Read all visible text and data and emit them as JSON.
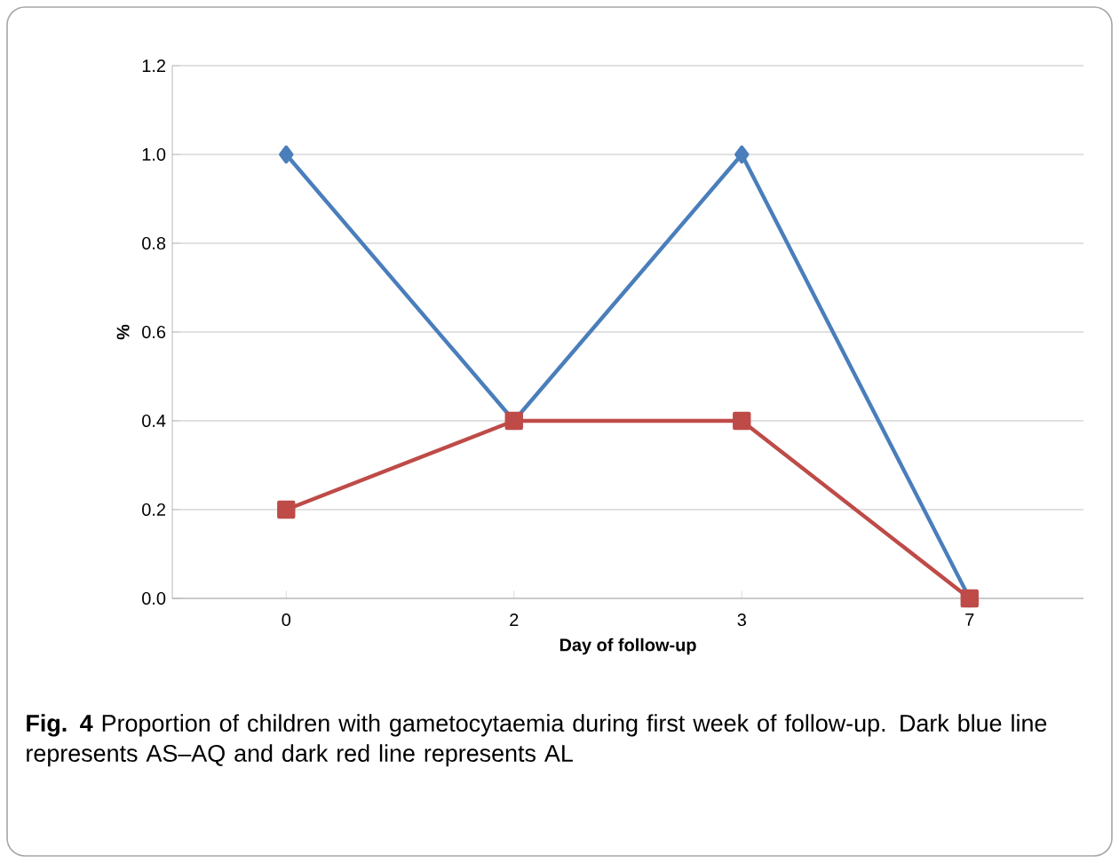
{
  "chart_data": {
    "type": "line",
    "xlabel": "Day of follow-up",
    "ylabel": "%",
    "categories": [
      "0",
      "2",
      "3",
      "7"
    ],
    "series": [
      {
        "color": "#4a7ebb",
        "marker": "diamond",
        "values": [
          1.0,
          0.4,
          1.0,
          0.0
        ]
      },
      {
        "color": "#be4b48",
        "marker": "square",
        "values": [
          0.2,
          0.4,
          0.4,
          0.0
        ]
      }
    ],
    "ylim": [
      0,
      1.2
    ],
    "yticks": [
      {
        "value": 0,
        "label": "0.0"
      },
      {
        "value": 0.2,
        "label": "0.2"
      },
      {
        "value": 0.4,
        "label": "0.4"
      },
      {
        "value": 0.6,
        "label": "0.6"
      },
      {
        "value": 0.8,
        "label": "0.8"
      },
      {
        "value": 1.0,
        "label": "1.0"
      },
      {
        "value": 1.2,
        "label": "1.2"
      }
    ],
    "grid": "y",
    "annotations": [
      "**Fig. 4** Proportion of children with gametocytaemia during first week of follow-up. Dark blue line represents AS–AQ and dark red line represents AL"
    ]
  }
}
